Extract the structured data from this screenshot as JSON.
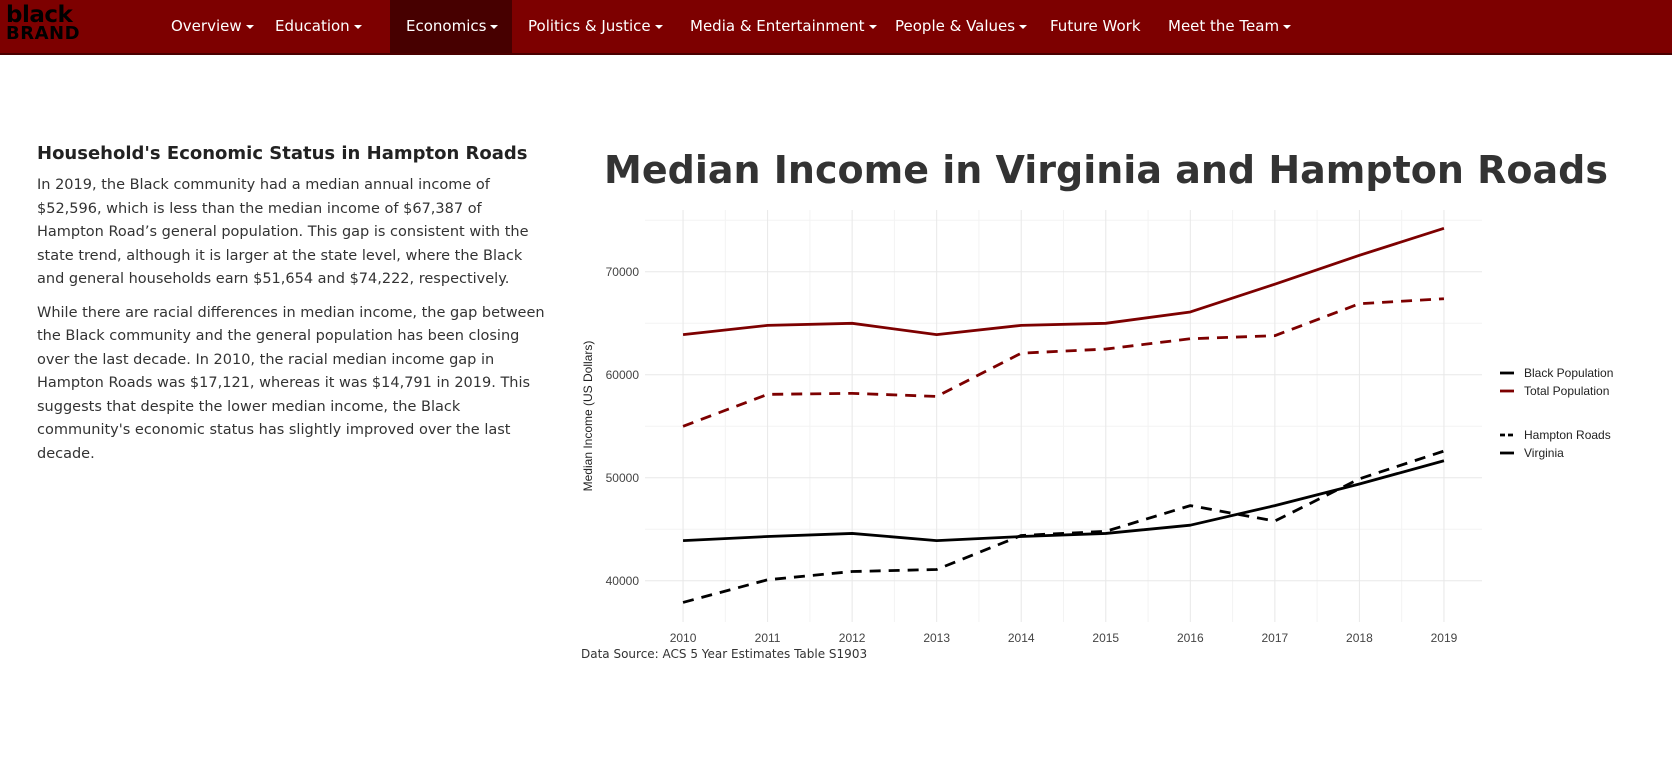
{
  "brand": {
    "line1": "black",
    "line2": "BRAND"
  },
  "nav": {
    "items": [
      {
        "label": "Overview",
        "dropdown": true
      },
      {
        "label": "Education",
        "dropdown": true
      },
      {
        "label": "Economics",
        "dropdown": true,
        "active": true
      },
      {
        "label": "Politics & Justice",
        "dropdown": true
      },
      {
        "label": "Media & Entertainment",
        "dropdown": true
      },
      {
        "label": "People & Values",
        "dropdown": true
      },
      {
        "label": "Future Work",
        "dropdown": false
      },
      {
        "label": "Meet the Team",
        "dropdown": true
      }
    ]
  },
  "main": {
    "heading": "Household's Economic Status in Hampton Roads",
    "p1": "In 2019, the Black community had a median annual income of $52,596, which is less than the median income of $67,387 of Hampton Road’s general population. This gap is consistent with the state trend, although it is larger at the state level, where the Black and general households earn $51,654 and $74,222, respectively.",
    "p2": "While there are racial differences in median income, the gap between the Black community and the general population has been closing over the last decade. In 2010, the racial median income gap in Hampton Roads was $17,121, whereas it was $14,791 in 2019. This suggests that despite the lower median income, the Black community's economic status has slightly improved over the last decade.",
    "source": "Data Source: ACS 5 Year Estimates Table S1903"
  },
  "colors": {
    "nav_bg": "#7d0000",
    "nav_active": "#470000",
    "total": "#7d0000",
    "black": "#000000"
  },
  "chart_data": {
    "type": "line",
    "title": "Median Income in Virginia and Hampton Roads",
    "xlabel": "",
    "ylabel": "Median Income (US Dollars)",
    "x": [
      2010,
      2011,
      2012,
      2013,
      2014,
      2015,
      2016,
      2017,
      2018,
      2019
    ],
    "ylim": [
      36000,
      76000
    ],
    "yticks": [
      40000,
      50000,
      60000,
      70000
    ],
    "grid": true,
    "legend": "right",
    "legend_color": [
      "Black Population",
      "Total Population"
    ],
    "legend_linetype": [
      "Hampton Roads",
      "Virginia"
    ],
    "series": [
      {
        "name": "Total Population - Virginia",
        "color": "#7d0000",
        "dash": "solid",
        "values": [
          63900,
          64800,
          65000,
          63900,
          64800,
          65000,
          66100,
          68800,
          71600,
          74222
        ]
      },
      {
        "name": "Total Population - Hampton Roads",
        "color": "#7d0000",
        "dash": "dashed",
        "values": [
          55000,
          58100,
          58200,
          57900,
          62100,
          62500,
          63500,
          63800,
          66900,
          67387
        ]
      },
      {
        "name": "Black Population - Virginia",
        "color": "#000000",
        "dash": "solid",
        "values": [
          43900,
          44300,
          44600,
          43900,
          44300,
          44600,
          45400,
          47300,
          49400,
          51654
        ]
      },
      {
        "name": "Black Population - Hampton Roads",
        "color": "#000000",
        "dash": "dashed",
        "values": [
          37900,
          40100,
          40900,
          41100,
          44400,
          44800,
          47300,
          45800,
          49900,
          52596
        ]
      }
    ]
  }
}
